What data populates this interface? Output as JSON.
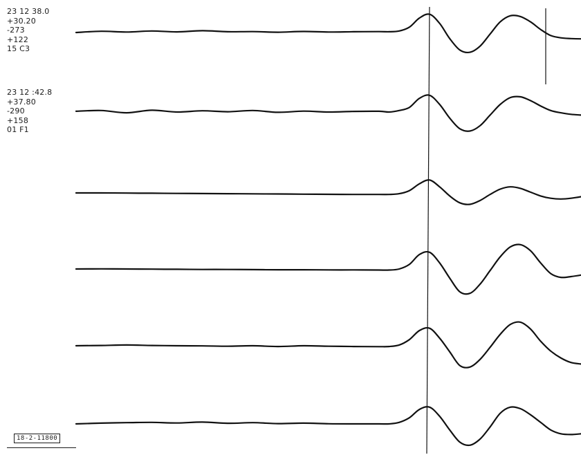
{
  "trace_headers": [
    {
      "time": "23 12 38.0",
      "line2": "+30.20",
      "line3": "-273",
      "line4": "+122",
      "code": "15 C3"
    },
    {
      "time": "23 12 :42.8",
      "line2": "+37.80",
      "line3": "-290",
      "line4": "+158",
      "code": "01 F1"
    }
  ],
  "reference_label": "18-2-11800",
  "colors": {
    "trace": "#111111",
    "background": "#ffffff"
  },
  "chart_data": {
    "type": "line",
    "title": "",
    "xlabel": "",
    "ylabel": "",
    "grid": false,
    "legend": "none",
    "markers": [
      {
        "kind": "vertical-line",
        "x": 0.7
      },
      {
        "kind": "vertical-line",
        "x": 0.95
      }
    ],
    "x": [
      0.0,
      0.05,
      0.1,
      0.15,
      0.2,
      0.25,
      0.3,
      0.35,
      0.4,
      0.45,
      0.5,
      0.55,
      0.6,
      0.62,
      0.64,
      0.66,
      0.68,
      0.7,
      0.72,
      0.74,
      0.76,
      0.78,
      0.8,
      0.82,
      0.84,
      0.86,
      0.88,
      0.9,
      0.92,
      0.94,
      0.96,
      0.98,
      1.0
    ],
    "series": [
      {
        "values": [
          0.0,
          0.08,
          0.03,
          0.1,
          0.04,
          0.12,
          0.05,
          0.06,
          0.02,
          0.07,
          0.03,
          0.05,
          0.06,
          0.05,
          0.1,
          0.35,
          0.95,
          1.2,
          0.6,
          -0.4,
          -1.15,
          -1.3,
          -0.9,
          -0.1,
          0.7,
          1.1,
          1.05,
          0.7,
          0.2,
          -0.2,
          -0.35,
          -0.4,
          -0.42
        ]
      },
      {
        "values": [
          0.05,
          0.1,
          -0.05,
          0.12,
          0.0,
          0.08,
          0.02,
          0.1,
          -0.02,
          0.06,
          0.0,
          0.04,
          0.05,
          0.0,
          0.1,
          0.3,
          0.9,
          1.1,
          0.5,
          -0.4,
          -1.1,
          -1.25,
          -0.9,
          -0.2,
          0.5,
          0.95,
          1.0,
          0.75,
          0.4,
          0.1,
          -0.05,
          -0.15,
          -0.2
        ]
      },
      {
        "values": [
          0.0,
          0.0,
          -0.01,
          -0.02,
          -0.03,
          -0.04,
          -0.05,
          -0.06,
          -0.07,
          -0.08,
          -0.09,
          -0.1,
          -0.1,
          -0.1,
          -0.05,
          0.15,
          0.6,
          0.85,
          0.4,
          -0.2,
          -0.65,
          -0.75,
          -0.5,
          -0.1,
          0.25,
          0.4,
          0.3,
          0.05,
          -0.2,
          -0.35,
          -0.4,
          -0.35,
          -0.25
        ]
      },
      {
        "values": [
          0.0,
          0.01,
          0.0,
          -0.01,
          -0.02,
          -0.03,
          -0.03,
          -0.04,
          -0.05,
          -0.05,
          -0.06,
          -0.06,
          -0.07,
          -0.07,
          0.0,
          0.3,
          0.95,
          1.1,
          0.4,
          -0.6,
          -1.5,
          -1.6,
          -1.0,
          -0.1,
          0.8,
          1.45,
          1.6,
          1.2,
          0.4,
          -0.3,
          -0.55,
          -0.5,
          -0.4
        ]
      },
      {
        "values": [
          0.0,
          0.02,
          0.05,
          0.02,
          0.0,
          -0.01,
          -0.03,
          0.0,
          -0.05,
          0.0,
          -0.03,
          -0.05,
          -0.06,
          -0.05,
          0.05,
          0.4,
          1.0,
          1.15,
          0.5,
          -0.4,
          -1.3,
          -1.4,
          -0.9,
          -0.1,
          0.75,
          1.4,
          1.55,
          1.1,
          0.3,
          -0.35,
          -0.8,
          -1.1,
          -1.2
        ]
      },
      {
        "values": [
          0.0,
          0.05,
          0.08,
          0.1,
          0.06,
          0.12,
          0.04,
          0.08,
          0.02,
          0.05,
          0.01,
          0.0,
          0.0,
          0.0,
          0.1,
          0.4,
          0.95,
          1.1,
          0.5,
          -0.4,
          -1.2,
          -1.4,
          -1.0,
          -0.2,
          0.7,
          1.1,
          1.0,
          0.6,
          0.1,
          -0.4,
          -0.65,
          -0.7,
          -0.65
        ]
      }
    ]
  }
}
